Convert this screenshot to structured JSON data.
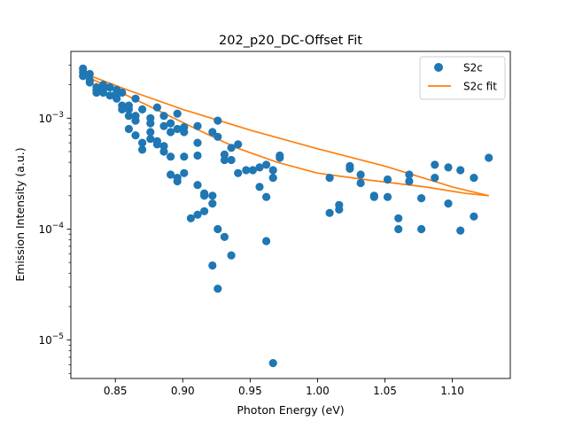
{
  "chart_data": {
    "type": "scatter",
    "title": "202_p20_DC-Offset Fit",
    "xlabel": "Photon Energy (eV)",
    "ylabel": "Emission Intensity (a.u.)",
    "xlim": [
      0.817,
      1.143
    ],
    "ylim": [
      4.5e-06,
      0.004
    ],
    "yscale": "log",
    "grid": false,
    "legend_position": "top-right",
    "x_ticks": [
      0.85,
      0.9,
      0.95,
      1.0,
      1.05,
      1.1
    ],
    "x_tick_labels": [
      "0.85",
      "0.90",
      "0.95",
      "1.00",
      "1.05",
      "1.10"
    ],
    "y_major_ticks": [
      1e-05,
      0.0001,
      0.001
    ],
    "y_tick_labels": [
      {
        "base": "10",
        "exp": "−5"
      },
      {
        "base": "10",
        "exp": "−4"
      },
      {
        "base": "10",
        "exp": "−3"
      }
    ],
    "series": [
      {
        "name": "S2c",
        "kind": "points",
        "color": "#1f77b4",
        "points": [
          [
            0.826,
            0.0028
          ],
          [
            0.826,
            0.0026
          ],
          [
            0.826,
            0.0024
          ],
          [
            0.831,
            0.0025
          ],
          [
            0.831,
            0.0022
          ],
          [
            0.831,
            0.0021
          ],
          [
            0.836,
            0.0019
          ],
          [
            0.836,
            0.0018
          ],
          [
            0.836,
            0.0017
          ],
          [
            0.841,
            0.002
          ],
          [
            0.841,
            0.0018
          ],
          [
            0.841,
            0.0017
          ],
          [
            0.846,
            0.0019
          ],
          [
            0.846,
            0.0016
          ],
          [
            0.851,
            0.0018
          ],
          [
            0.851,
            0.0017
          ],
          [
            0.851,
            0.0015
          ],
          [
            0.855,
            0.0017
          ],
          [
            0.855,
            0.0013
          ],
          [
            0.855,
            0.0012
          ],
          [
            0.86,
            0.0013
          ],
          [
            0.86,
            0.0012
          ],
          [
            0.86,
            0.00105
          ],
          [
            0.86,
            0.0008
          ],
          [
            0.865,
            0.0015
          ],
          [
            0.865,
            0.00105
          ],
          [
            0.865,
            0.00095
          ],
          [
            0.865,
            0.0007
          ],
          [
            0.87,
            0.0012
          ],
          [
            0.87,
            0.0006
          ],
          [
            0.87,
            0.00052
          ],
          [
            0.876,
            0.001
          ],
          [
            0.876,
            0.0009
          ],
          [
            0.876,
            0.00075
          ],
          [
            0.876,
            0.00065
          ],
          [
            0.881,
            0.00125
          ],
          [
            0.881,
            0.00062
          ],
          [
            0.881,
            0.00058
          ],
          [
            0.886,
            0.00105
          ],
          [
            0.886,
            0.00085
          ],
          [
            0.886,
            0.00056
          ],
          [
            0.886,
            0.0005
          ],
          [
            0.891,
            0.0009
          ],
          [
            0.891,
            0.00075
          ],
          [
            0.891,
            0.00045
          ],
          [
            0.891,
            0.00031
          ],
          [
            0.896,
            0.0011
          ],
          [
            0.896,
            0.0008
          ],
          [
            0.896,
            0.00029
          ],
          [
            0.896,
            0.00027
          ],
          [
            0.901,
            0.00083
          ],
          [
            0.901,
            0.00075
          ],
          [
            0.901,
            0.00045
          ],
          [
            0.901,
            0.00032
          ],
          [
            0.906,
            0.000125
          ],
          [
            0.911,
            0.00085
          ],
          [
            0.911,
            0.0006
          ],
          [
            0.911,
            0.00046
          ],
          [
            0.911,
            0.00025
          ],
          [
            0.911,
            0.000135
          ],
          [
            0.916,
            0.00021
          ],
          [
            0.916,
            0.0002
          ],
          [
            0.916,
            0.000145
          ],
          [
            0.922,
            0.00075
          ],
          [
            0.922,
            0.0002
          ],
          [
            0.922,
            0.00017
          ],
          [
            0.922,
            4.7e-05
          ],
          [
            0.926,
            0.00095
          ],
          [
            0.926,
            0.00068
          ],
          [
            0.926,
            0.0001
          ],
          [
            0.926,
            2.9e-05
          ],
          [
            0.931,
            0.00047
          ],
          [
            0.931,
            0.00042
          ],
          [
            0.931,
            8.5e-05
          ],
          [
            0.936,
            0.00054
          ],
          [
            0.936,
            0.00042
          ],
          [
            0.936,
            5.8e-05
          ],
          [
            0.941,
            0.00058
          ],
          [
            0.941,
            0.00032
          ],
          [
            0.947,
            0.00034
          ],
          [
            0.952,
            0.00034
          ],
          [
            0.957,
            0.00036
          ],
          [
            0.957,
            0.00024
          ],
          [
            0.962,
            0.00038
          ],
          [
            0.962,
            0.000195
          ],
          [
            0.962,
            7.8e-05
          ],
          [
            0.967,
            0.00034
          ],
          [
            0.967,
            0.00029
          ],
          [
            0.967,
            6.2e-06
          ],
          [
            0.972,
            0.00046
          ],
          [
            0.972,
            0.00044
          ],
          [
            1.009,
            0.00029
          ],
          [
            1.009,
            0.00014
          ],
          [
            1.016,
            0.000165
          ],
          [
            1.016,
            0.00015
          ],
          [
            1.024,
            0.00037
          ],
          [
            1.024,
            0.00035
          ],
          [
            1.032,
            0.00031
          ],
          [
            1.032,
            0.00026
          ],
          [
            1.042,
            0.0002
          ],
          [
            1.042,
            0.000195
          ],
          [
            1.052,
            0.00028
          ],
          [
            1.052,
            0.000195
          ],
          [
            1.06,
            0.000125
          ],
          [
            1.06,
            0.0001
          ],
          [
            1.068,
            0.00031
          ],
          [
            1.068,
            0.00027
          ],
          [
            1.077,
            0.00019
          ],
          [
            1.077,
            0.0001
          ],
          [
            1.087,
            0.00038
          ],
          [
            1.087,
            0.00029
          ],
          [
            1.097,
            0.00036
          ],
          [
            1.097,
            0.00017
          ],
          [
            1.106,
            0.00034
          ],
          [
            1.106,
            9.7e-05
          ],
          [
            1.116,
            0.00029
          ],
          [
            1.116,
            0.00013
          ],
          [
            1.127,
            0.00044
          ]
        ]
      },
      {
        "name": "S2c fit",
        "kind": "lines",
        "color": "#ff7f0e",
        "segments": [
          [
            [
              0.826,
              0.00255
            ],
            [
              0.86,
              0.00178
            ],
            [
              0.9,
              0.0012
            ],
            [
              0.95,
              0.00078
            ],
            [
              1.0,
              0.00053
            ],
            [
              1.05,
              0.00037
            ],
            [
              1.1,
              0.00024
            ],
            [
              1.127,
              0.0002
            ]
          ],
          [
            [
              0.826,
              0.00245
            ],
            [
              0.85,
              0.0018
            ],
            [
              0.88,
              0.0012
            ],
            [
              0.91,
              0.0008
            ],
            [
              0.94,
              0.00054
            ],
            [
              0.97,
              0.0004
            ],
            [
              1.0,
              0.00032
            ],
            [
              1.04,
              0.000275
            ],
            [
              1.08,
              0.00024
            ],
            [
              1.11,
              0.00021
            ],
            [
              1.127,
              0.0002
            ]
          ]
        ]
      }
    ]
  }
}
